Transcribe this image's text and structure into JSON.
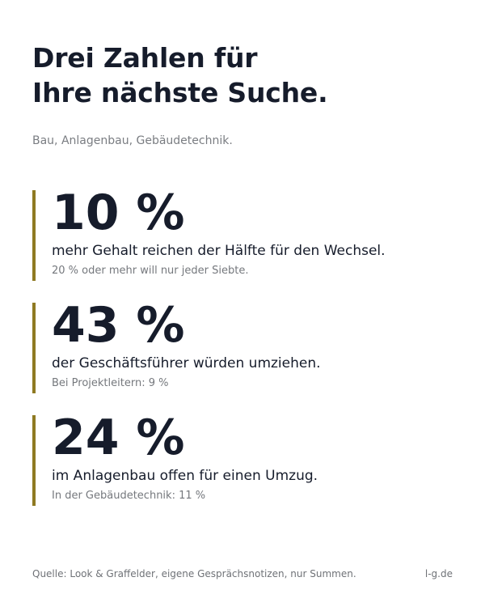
{
  "title": {
    "line1": "Drei Zahlen für",
    "line2": "Ihre nächste Suche."
  },
  "subtitle": "Bau, Anlagenbau, Gebäudetechnik.",
  "accent_color": "#8f7a22",
  "stats": [
    {
      "value": "10 %",
      "description": "mehr Gehalt reichen der Hälfte für den Wechsel.",
      "note": "20 % oder mehr will nur jeder Siebte."
    },
    {
      "value": "43 %",
      "description": "der Geschäftsführer würden umziehen.",
      "note": "Bei Projektleitern: 9 %"
    },
    {
      "value": "24 %",
      "description": "im Anlagenbau offen für einen Umzug.",
      "note": "In der Gebäudetechnik: 11 %"
    }
  ],
  "footer": {
    "source": "Quelle: Look & Graffelder, eigene Gesprächsnotizen, nur Summen.",
    "domain": "l-g.de"
  }
}
